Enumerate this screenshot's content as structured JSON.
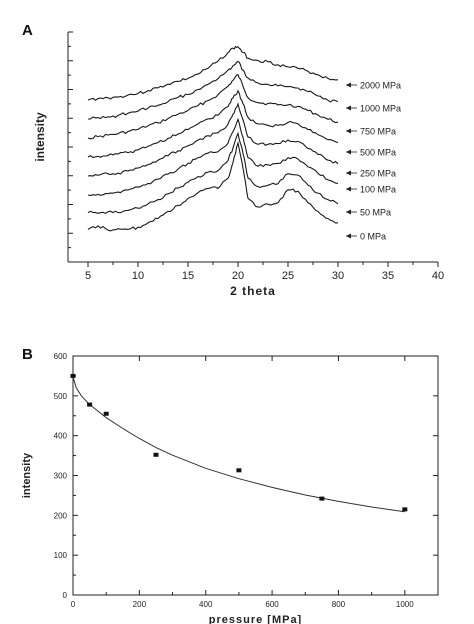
{
  "panels": [
    {
      "letter": "A"
    },
    {
      "letter": "B"
    }
  ],
  "chart_data": [
    {
      "type": "line",
      "title": "",
      "xlabel": "2 theta",
      "ylabel": "intensity",
      "xlim": [
        3,
        40
      ],
      "x_ticks": [
        5,
        10,
        15,
        20,
        25,
        30,
        35,
        40
      ],
      "y_ticks_labeled": false,
      "grid": false,
      "legend": "inline labels on right of each trace",
      "x": [
        5,
        6,
        7,
        8,
        9,
        10,
        11,
        12,
        13,
        14,
        15,
        16,
        17,
        18,
        19,
        19.5,
        20,
        20.5,
        21,
        22,
        23,
        24,
        25,
        26,
        27,
        28,
        29,
        30
      ],
      "series": [
        {
          "name": "2000 MPa",
          "values": [
            0.0,
            0.02,
            0.03,
            0.04,
            0.07,
            0.09,
            0.13,
            0.17,
            0.22,
            0.26,
            0.3,
            0.36,
            0.44,
            0.54,
            0.66,
            0.72,
            0.74,
            0.66,
            0.58,
            0.55,
            0.53,
            0.49,
            0.46,
            0.44,
            0.4,
            0.35,
            0.3,
            0.28
          ]
        },
        {
          "name": "1000 MPa",
          "values": [
            0.0,
            0.02,
            0.03,
            0.05,
            0.08,
            0.11,
            0.15,
            0.19,
            0.24,
            0.3,
            0.34,
            0.41,
            0.48,
            0.56,
            0.68,
            0.74,
            0.8,
            0.68,
            0.57,
            0.5,
            0.48,
            0.46,
            0.45,
            0.43,
            0.38,
            0.32,
            0.26,
            0.24
          ]
        },
        {
          "name": "750 MPa",
          "values": [
            0.0,
            0.02,
            0.04,
            0.06,
            0.09,
            0.12,
            0.17,
            0.21,
            0.27,
            0.33,
            0.38,
            0.45,
            0.52,
            0.6,
            0.72,
            0.8,
            0.88,
            0.72,
            0.56,
            0.49,
            0.48,
            0.46,
            0.46,
            0.44,
            0.38,
            0.32,
            0.26,
            0.22
          ]
        },
        {
          "name": "500 MPa",
          "values": [
            0.0,
            0.01,
            0.02,
            0.04,
            0.06,
            0.1,
            0.15,
            0.2,
            0.26,
            0.32,
            0.38,
            0.46,
            0.53,
            0.58,
            0.7,
            0.82,
            0.92,
            0.74,
            0.55,
            0.46,
            0.44,
            0.44,
            0.48,
            0.46,
            0.38,
            0.31,
            0.24,
            0.2
          ]
        },
        {
          "name": "250 MPa",
          "values": [
            0.0,
            0.01,
            0.03,
            0.04,
            0.07,
            0.11,
            0.16,
            0.22,
            0.28,
            0.35,
            0.42,
            0.5,
            0.56,
            0.6,
            0.72,
            0.86,
            1.0,
            0.78,
            0.54,
            0.44,
            0.44,
            0.45,
            0.5,
            0.48,
            0.38,
            0.3,
            0.22,
            0.17
          ]
        },
        {
          "name": "100 MPa",
          "values": [
            0.0,
            0.01,
            0.02,
            0.04,
            0.07,
            0.11,
            0.16,
            0.22,
            0.29,
            0.36,
            0.44,
            0.52,
            0.58,
            0.6,
            0.72,
            0.88,
            1.05,
            0.8,
            0.52,
            0.4,
            0.42,
            0.44,
            0.52,
            0.5,
            0.39,
            0.3,
            0.21,
            0.16
          ]
        },
        {
          "name": "50 MPa",
          "values": [
            0.02,
            0.01,
            0.03,
            0.02,
            0.05,
            0.08,
            0.14,
            0.2,
            0.28,
            0.36,
            0.44,
            0.52,
            0.58,
            0.6,
            0.74,
            0.92,
            1.12,
            0.84,
            0.5,
            0.38,
            0.4,
            0.42,
            0.56,
            0.54,
            0.4,
            0.29,
            0.2,
            0.14
          ]
        },
        {
          "name": "0 MPa",
          "values": [
            0.05,
            0.1,
            0.04,
            0.06,
            0.05,
            0.08,
            0.14,
            0.2,
            0.3,
            0.38,
            0.48,
            0.56,
            0.62,
            0.62,
            0.76,
            0.98,
            1.25,
            0.9,
            0.48,
            0.36,
            0.4,
            0.42,
            0.6,
            0.58,
            0.42,
            0.3,
            0.2,
            0.14
          ]
        }
      ]
    },
    {
      "type": "scatter",
      "title": "",
      "xlabel": "pressure [MPa]",
      "ylabel": "intensity",
      "xlim": [
        0,
        1100
      ],
      "ylim": [
        0,
        600
      ],
      "x_ticks": [
        0,
        200,
        400,
        600,
        800,
        1000
      ],
      "y_ticks": [
        0,
        100,
        200,
        300,
        400,
        500,
        600
      ],
      "grid": false,
      "series": [
        {
          "x": [
            0,
            50,
            100,
            250,
            500,
            750,
            1000
          ],
          "values": [
            550,
            478,
            455,
            352,
            313,
            242,
            215
          ]
        }
      ],
      "fit_curve": {
        "x": [
          0,
          10,
          25,
          50,
          75,
          100,
          150,
          200,
          250,
          300,
          400,
          500,
          600,
          700,
          800,
          900,
          1000
        ],
        "values": [
          548,
          520,
          500,
          478,
          462,
          445,
          418,
          393,
          370,
          351,
          318,
          292,
          270,
          251,
          235,
          221,
          209
        ]
      }
    }
  ]
}
